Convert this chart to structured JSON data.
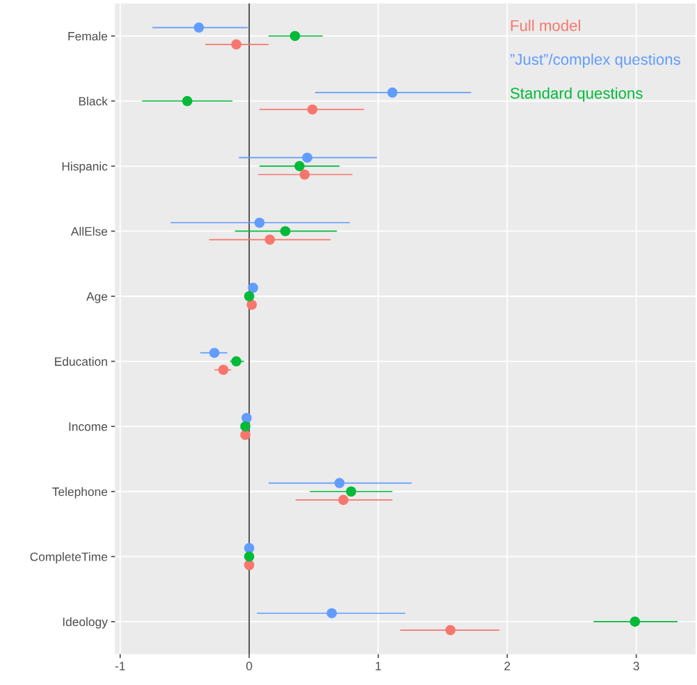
{
  "chart_data": {
    "type": "scatter",
    "orientation": "horizontal",
    "categories": [
      "Female",
      "Black",
      "Hispanic",
      "AllElse",
      "Age",
      "Education",
      "Income",
      "Telephone",
      "CompleteTime",
      "Ideology"
    ],
    "series": [
      {
        "name": "Full model",
        "color": "#f8766d",
        "values": [
          -0.1,
          0.49,
          0.43,
          0.16,
          0.02,
          -0.2,
          -0.03,
          0.73,
          0.0,
          1.56
        ],
        "errors": [
          [
            -0.34,
            0.15
          ],
          [
            0.08,
            0.89
          ],
          [
            0.07,
            0.8
          ],
          [
            -0.31,
            0.63
          ],
          null,
          [
            -0.27,
            -0.14
          ],
          null,
          [
            0.36,
            1.11
          ],
          null,
          [
            1.17,
            1.94
          ]
        ]
      },
      {
        "name": "”Just”/complex questions",
        "color": "#619cff",
        "values": [
          -0.39,
          1.11,
          0.45,
          0.08,
          0.03,
          -0.27,
          -0.02,
          0.7,
          0.0,
          0.64
        ],
        "errors": [
          [
            -0.75,
            -0.01
          ],
          [
            0.51,
            1.72
          ],
          [
            -0.08,
            0.99
          ],
          [
            -0.61,
            0.78
          ],
          null,
          [
            -0.38,
            -0.17
          ],
          null,
          [
            0.15,
            1.26
          ],
          null,
          [
            0.06,
            1.21
          ]
        ]
      },
      {
        "name": "Standard questions",
        "color": "#00ba38",
        "values": [
          0.355,
          -0.48,
          0.39,
          0.28,
          0.0,
          -0.1,
          -0.03,
          0.79,
          0.0,
          2.99
        ],
        "errors": [
          [
            0.15,
            0.57
          ],
          [
            -0.83,
            -0.13
          ],
          [
            0.08,
            0.7
          ],
          [
            -0.11,
            0.68
          ],
          null,
          [
            -0.15,
            -0.04
          ],
          null,
          [
            0.47,
            1.11
          ],
          null,
          [
            2.67,
            3.32
          ]
        ]
      }
    ],
    "xlim": [
      -1.04,
      3.46
    ],
    "xticks": [
      -1,
      0,
      1,
      2,
      3
    ],
    "ref_lines": [
      {
        "axis": "x",
        "value": 0,
        "color": "#333333"
      }
    ],
    "grid": true,
    "legend": "top right",
    "marker": "circle"
  }
}
